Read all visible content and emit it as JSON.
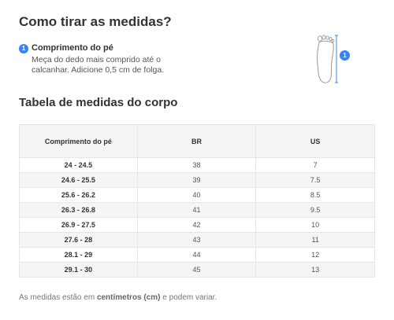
{
  "header": {
    "title": "Como tirar as medidas?"
  },
  "step": {
    "number": "1",
    "title": "Comprimento do pé",
    "description": "Meça do dedo mais comprido até o calcanhar. Adicione 0,5 cm de folga."
  },
  "illustration": {
    "icon": "foot-measure-icon",
    "badge": "1"
  },
  "table_section": {
    "title": "Tabela de medidas do corpo"
  },
  "table": {
    "headers": [
      "Comprimento do pé",
      "BR",
      "US"
    ],
    "rows": [
      [
        "24 - 24.5",
        "38",
        "7"
      ],
      [
        "24.6 - 25.5",
        "39",
        "7.5"
      ],
      [
        "25.6 - 26.2",
        "40",
        "8.5"
      ],
      [
        "26.3 - 26.8",
        "41",
        "9.5"
      ],
      [
        "26.9 - 27.5",
        "42",
        "10"
      ],
      [
        "27.6 - 28",
        "43",
        "11"
      ],
      [
        "28.1 - 29",
        "44",
        "12"
      ],
      [
        "29.1 - 30",
        "45",
        "13"
      ]
    ]
  },
  "footer_note": {
    "prefix": "As medidas estão em ",
    "bold": "centímetros (cm)",
    "suffix": " e podem variar."
  },
  "colors": {
    "accent": "#3483fa",
    "stripe": "#f5f5f5",
    "border": "#e6e6e6"
  }
}
